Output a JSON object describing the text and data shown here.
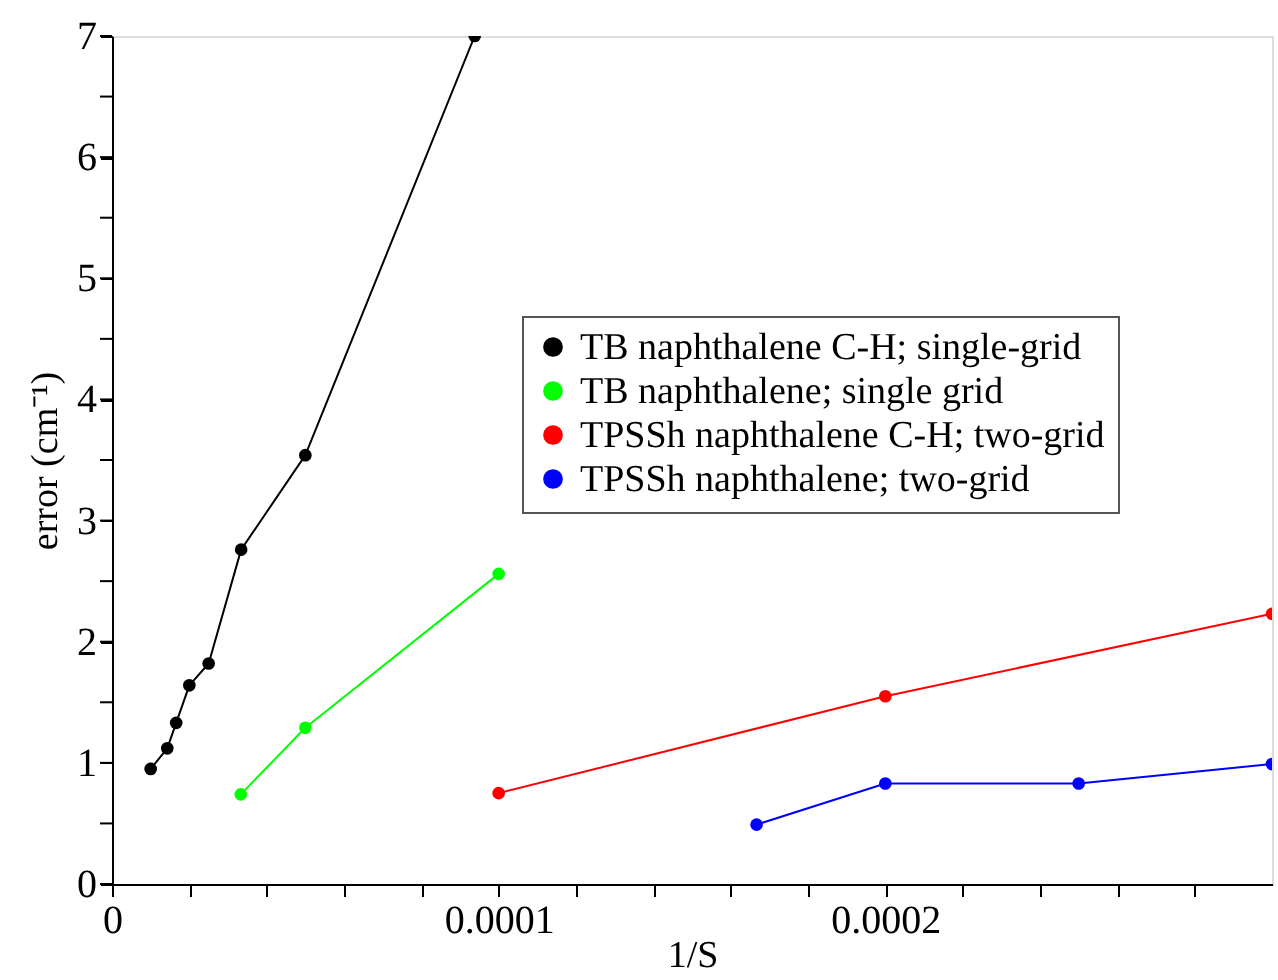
{
  "chart_data": {
    "type": "line",
    "xlabel": "1/S",
    "ylabel": "error (cm⁻¹)",
    "xlim": [
      0,
      0.0003
    ],
    "ylim": [
      0,
      7
    ],
    "xticks": [
      0,
      {
        "value": 2e-05,
        "label": null
      },
      {
        "value": 4e-05,
        "label": null
      },
      {
        "value": 6e-05,
        "label": null
      },
      {
        "value": 8e-05,
        "label": null
      },
      0.0001,
      {
        "value": 0.00012,
        "label": null
      },
      {
        "value": 0.00014,
        "label": null
      },
      {
        "value": 0.00016,
        "label": null
      },
      {
        "value": 0.00018,
        "label": null
      },
      0.0002,
      {
        "value": 0.00022,
        "label": null
      },
      {
        "value": 0.00024,
        "label": null
      },
      {
        "value": 0.00026,
        "label": null
      },
      {
        "value": 0.00028,
        "label": null
      }
    ],
    "yticks": [
      0,
      {
        "value": 0.5,
        "label": null
      },
      1,
      {
        "value": 1.5,
        "label": null
      },
      2,
      {
        "value": 2.5,
        "label": null
      },
      3,
      {
        "value": 3.5,
        "label": null
      },
      4,
      {
        "value": 4.5,
        "label": null
      },
      5,
      {
        "value": 5.5,
        "label": null
      },
      6,
      {
        "value": 6.5,
        "label": null
      },
      7
    ],
    "grid": false,
    "legend": "right",
    "marker": "circle",
    "line_style": "solid",
    "series": [
      {
        "name": "TB naphthalene C-H; single-grid",
        "color": "#000000",
        "x": [
          1e-05,
          1.43e-05,
          1.66e-05,
          2e-05,
          2.5e-05,
          3.34e-05,
          5e-05,
          9.38e-05
        ],
        "values": [
          0.95,
          1.12,
          1.33,
          1.64,
          1.82,
          2.76,
          3.54,
          7
        ]
      },
      {
        "name": "TB naphthalene; single grid",
        "color": "#00ff00",
        "x": [
          3.33e-05,
          5e-05,
          0.0001
        ],
        "values": [
          0.74,
          1.29,
          2.56
        ]
      },
      {
        "name": "TPSSh naphthalene C-H; two-grid",
        "color": "#ff0000",
        "x": [
          0.0001,
          0.0002,
          0.0003
        ],
        "values": [
          0.75,
          1.55,
          2.23
        ]
      },
      {
        "name": "TPSSh naphthalene; two-grid",
        "color": "#0000ff",
        "x": [
          0.0001667,
          0.0002,
          0.00025,
          0.0003
        ],
        "values": [
          0.49,
          0.83,
          0.83,
          0.99
        ]
      }
    ]
  }
}
